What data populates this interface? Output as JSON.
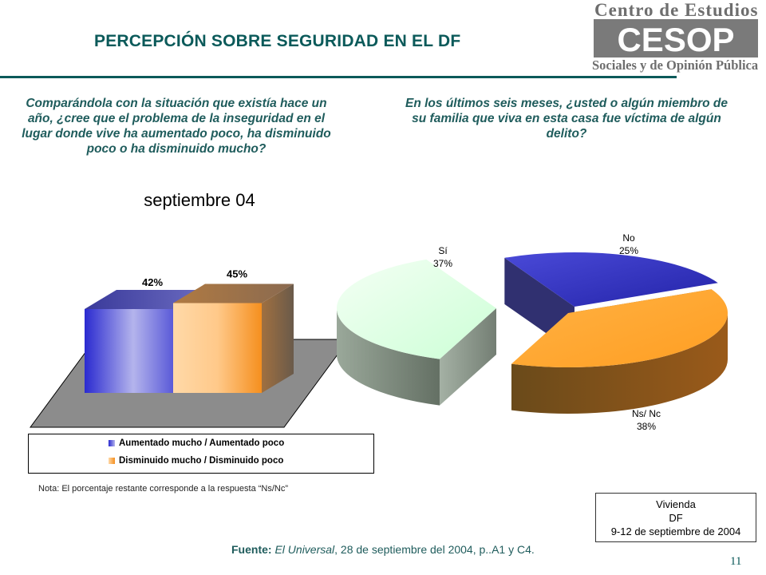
{
  "header": {
    "title": "PERCEPCIÓN SOBRE SEGURIDAD EN EL DF",
    "logo_text_top": "Centro de Estudios",
    "logo_acronym": "CESOP",
    "logo_text_bottom": "Sociales y de Opinión Pública"
  },
  "questions": {
    "left": "Comparándola con la situación que existía hace un año, ¿cree que el problema de la inseguridad en el lugar donde vive ha aumentado poco, ha disminuido poco o ha disminuido mucho?",
    "right": "En los últimos seis meses, ¿usted o algún miembro de su familia que viva en esta casa fue víctima de algún delito?"
  },
  "chart_data": [
    {
      "type": "bar",
      "title": "septiembre 04",
      "categories": [
        "Aumentado mucho / Aumentado poco",
        "Disminuido mucho / Disminuido poco"
      ],
      "values": [
        42,
        45
      ],
      "value_labels": [
        "42%",
        "45%"
      ],
      "colors": [
        "#3a3ad8",
        "#f7a34a"
      ],
      "legend": "bottom",
      "ylim": [
        0,
        100
      ]
    },
    {
      "type": "pie",
      "categories": [
        "No",
        "Ns/ Nc",
        "Sí"
      ],
      "values": [
        25,
        38,
        37
      ],
      "value_labels": [
        "25%",
        "38%",
        "37%"
      ],
      "colors": [
        "#3333cc",
        "#ffa733",
        "#e4ffe8"
      ]
    }
  ],
  "note": "Nota: El porcentaje restante corresponde a la respuesta “Ns/Nc”",
  "info_box": {
    "line1": "Vivienda",
    "line2": "DF",
    "line3": "9-12 de septiembre de 2004"
  },
  "source": {
    "label": "Fuente:",
    "publication": "El Universal",
    "rest": ", 28  de septiembre del 2004, p..A1 y C4."
  },
  "page_number": "11"
}
